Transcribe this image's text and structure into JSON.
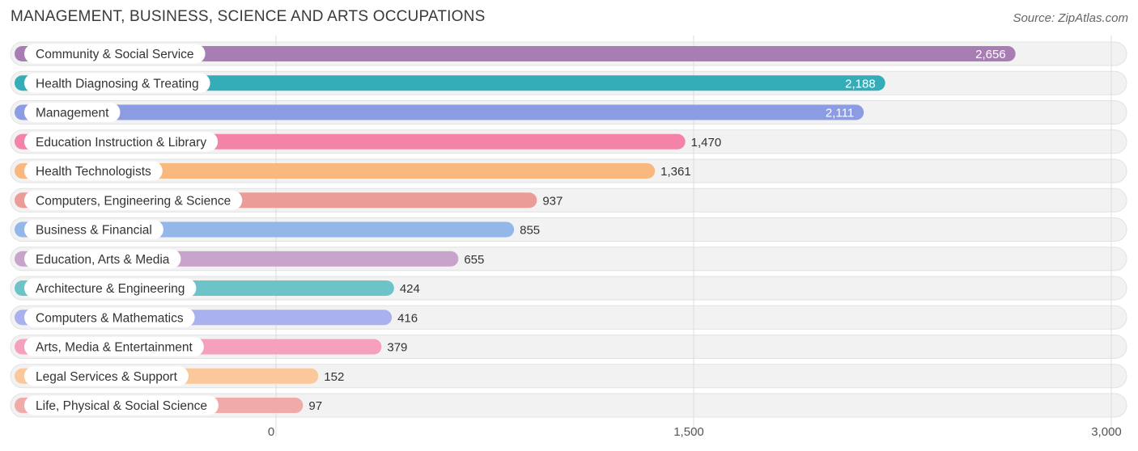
{
  "header": {
    "title": "MANAGEMENT, BUSINESS, SCIENCE AND ARTS OCCUPATIONS",
    "source": "Source: ZipAtlas.com"
  },
  "chart_data": {
    "type": "bar",
    "orientation": "horizontal",
    "title": "MANAGEMENT, BUSINESS, SCIENCE AND ARTS OCCUPATIONS",
    "xlim": [
      0,
      3000
    ],
    "x_ticks": [
      0,
      1500,
      3000
    ],
    "x_tick_labels": [
      "0",
      "1,500",
      "3,000"
    ],
    "grid": true,
    "categories": [
      "Community & Social Service",
      "Health Diagnosing & Treating",
      "Management",
      "Education Instruction & Library",
      "Health Technologists",
      "Computers, Engineering & Science",
      "Business & Financial",
      "Education, Arts & Media",
      "Architecture & Engineering",
      "Computers & Mathematics",
      "Arts, Media & Entertainment",
      "Legal Services & Support",
      "Life, Physical & Social Science"
    ],
    "values": [
      2656,
      2188,
      2111,
      1470,
      1361,
      937,
      855,
      655,
      424,
      416,
      379,
      152,
      97
    ],
    "value_labels": [
      "2,656",
      "2,188",
      "2,111",
      "1,470",
      "1,361",
      "937",
      "855",
      "655",
      "424",
      "416",
      "379",
      "152",
      "97"
    ],
    "colors": [
      "#a87db3",
      "#35adb9",
      "#8c9ce3",
      "#f384a8",
      "#f9b87e",
      "#eb9b98",
      "#92b7e8",
      "#c8a4ca",
      "#6cc4c9",
      "#a9b1ee",
      "#f5a0bd",
      "#fac89a",
      "#f0aaa8"
    ]
  }
}
